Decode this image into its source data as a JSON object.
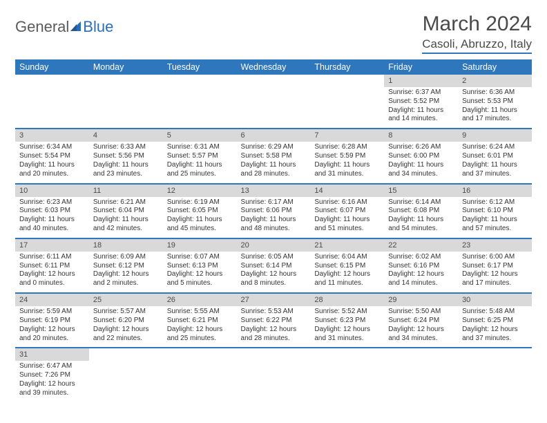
{
  "branding": {
    "general": "General",
    "blue": "Blue"
  },
  "title": {
    "month": "March 2024",
    "location": "Casoli, Abruzzo, Italy"
  },
  "weekdays": [
    "Sunday",
    "Monday",
    "Tuesday",
    "Wednesday",
    "Thursday",
    "Friday",
    "Saturday"
  ],
  "colors": {
    "header_bg": "#2f77bd",
    "header_fg": "#ffffff",
    "daynum_bg": "#d9d9d9",
    "text": "#333333"
  },
  "weeks": [
    [
      null,
      null,
      null,
      null,
      null,
      {
        "n": "1",
        "sr": "Sunrise: 6:37 AM",
        "ss": "Sunset: 5:52 PM",
        "dl": "Daylight: 11 hours and 14 minutes."
      },
      {
        "n": "2",
        "sr": "Sunrise: 6:36 AM",
        "ss": "Sunset: 5:53 PM",
        "dl": "Daylight: 11 hours and 17 minutes."
      }
    ],
    [
      {
        "n": "3",
        "sr": "Sunrise: 6:34 AM",
        "ss": "Sunset: 5:54 PM",
        "dl": "Daylight: 11 hours and 20 minutes."
      },
      {
        "n": "4",
        "sr": "Sunrise: 6:33 AM",
        "ss": "Sunset: 5:56 PM",
        "dl": "Daylight: 11 hours and 23 minutes."
      },
      {
        "n": "5",
        "sr": "Sunrise: 6:31 AM",
        "ss": "Sunset: 5:57 PM",
        "dl": "Daylight: 11 hours and 25 minutes."
      },
      {
        "n": "6",
        "sr": "Sunrise: 6:29 AM",
        "ss": "Sunset: 5:58 PM",
        "dl": "Daylight: 11 hours and 28 minutes."
      },
      {
        "n": "7",
        "sr": "Sunrise: 6:28 AM",
        "ss": "Sunset: 5:59 PM",
        "dl": "Daylight: 11 hours and 31 minutes."
      },
      {
        "n": "8",
        "sr": "Sunrise: 6:26 AM",
        "ss": "Sunset: 6:00 PM",
        "dl": "Daylight: 11 hours and 34 minutes."
      },
      {
        "n": "9",
        "sr": "Sunrise: 6:24 AM",
        "ss": "Sunset: 6:01 PM",
        "dl": "Daylight: 11 hours and 37 minutes."
      }
    ],
    [
      {
        "n": "10",
        "sr": "Sunrise: 6:23 AM",
        "ss": "Sunset: 6:03 PM",
        "dl": "Daylight: 11 hours and 40 minutes."
      },
      {
        "n": "11",
        "sr": "Sunrise: 6:21 AM",
        "ss": "Sunset: 6:04 PM",
        "dl": "Daylight: 11 hours and 42 minutes."
      },
      {
        "n": "12",
        "sr": "Sunrise: 6:19 AM",
        "ss": "Sunset: 6:05 PM",
        "dl": "Daylight: 11 hours and 45 minutes."
      },
      {
        "n": "13",
        "sr": "Sunrise: 6:17 AM",
        "ss": "Sunset: 6:06 PM",
        "dl": "Daylight: 11 hours and 48 minutes."
      },
      {
        "n": "14",
        "sr": "Sunrise: 6:16 AM",
        "ss": "Sunset: 6:07 PM",
        "dl": "Daylight: 11 hours and 51 minutes."
      },
      {
        "n": "15",
        "sr": "Sunrise: 6:14 AM",
        "ss": "Sunset: 6:08 PM",
        "dl": "Daylight: 11 hours and 54 minutes."
      },
      {
        "n": "16",
        "sr": "Sunrise: 6:12 AM",
        "ss": "Sunset: 6:10 PM",
        "dl": "Daylight: 11 hours and 57 minutes."
      }
    ],
    [
      {
        "n": "17",
        "sr": "Sunrise: 6:11 AM",
        "ss": "Sunset: 6:11 PM",
        "dl": "Daylight: 12 hours and 0 minutes."
      },
      {
        "n": "18",
        "sr": "Sunrise: 6:09 AM",
        "ss": "Sunset: 6:12 PM",
        "dl": "Daylight: 12 hours and 2 minutes."
      },
      {
        "n": "19",
        "sr": "Sunrise: 6:07 AM",
        "ss": "Sunset: 6:13 PM",
        "dl": "Daylight: 12 hours and 5 minutes."
      },
      {
        "n": "20",
        "sr": "Sunrise: 6:05 AM",
        "ss": "Sunset: 6:14 PM",
        "dl": "Daylight: 12 hours and 8 minutes."
      },
      {
        "n": "21",
        "sr": "Sunrise: 6:04 AM",
        "ss": "Sunset: 6:15 PM",
        "dl": "Daylight: 12 hours and 11 minutes."
      },
      {
        "n": "22",
        "sr": "Sunrise: 6:02 AM",
        "ss": "Sunset: 6:16 PM",
        "dl": "Daylight: 12 hours and 14 minutes."
      },
      {
        "n": "23",
        "sr": "Sunrise: 6:00 AM",
        "ss": "Sunset: 6:17 PM",
        "dl": "Daylight: 12 hours and 17 minutes."
      }
    ],
    [
      {
        "n": "24",
        "sr": "Sunrise: 5:59 AM",
        "ss": "Sunset: 6:19 PM",
        "dl": "Daylight: 12 hours and 20 minutes."
      },
      {
        "n": "25",
        "sr": "Sunrise: 5:57 AM",
        "ss": "Sunset: 6:20 PM",
        "dl": "Daylight: 12 hours and 22 minutes."
      },
      {
        "n": "26",
        "sr": "Sunrise: 5:55 AM",
        "ss": "Sunset: 6:21 PM",
        "dl": "Daylight: 12 hours and 25 minutes."
      },
      {
        "n": "27",
        "sr": "Sunrise: 5:53 AM",
        "ss": "Sunset: 6:22 PM",
        "dl": "Daylight: 12 hours and 28 minutes."
      },
      {
        "n": "28",
        "sr": "Sunrise: 5:52 AM",
        "ss": "Sunset: 6:23 PM",
        "dl": "Daylight: 12 hours and 31 minutes."
      },
      {
        "n": "29",
        "sr": "Sunrise: 5:50 AM",
        "ss": "Sunset: 6:24 PM",
        "dl": "Daylight: 12 hours and 34 minutes."
      },
      {
        "n": "30",
        "sr": "Sunrise: 5:48 AM",
        "ss": "Sunset: 6:25 PM",
        "dl": "Daylight: 12 hours and 37 minutes."
      }
    ],
    [
      {
        "n": "31",
        "sr": "Sunrise: 6:47 AM",
        "ss": "Sunset: 7:26 PM",
        "dl": "Daylight: 12 hours and 39 minutes."
      },
      null,
      null,
      null,
      null,
      null,
      null
    ]
  ]
}
